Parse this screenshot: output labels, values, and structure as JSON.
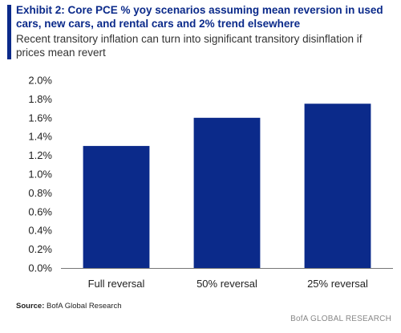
{
  "header": {
    "title": "Exhibit 2: Core PCE % yoy scenarios assuming mean reversion in used cars, new cars, and rental cars and 2% trend elsewhere",
    "subtitle": "Recent transitory inflation can turn into significant transitory disinflation if prices mean revert"
  },
  "colors": {
    "bar": "#0b2a8a",
    "accent": "#0b2a8a"
  },
  "chart_data": {
    "type": "bar",
    "title": "Exhibit 2: Core PCE % yoy scenarios assuming mean reversion in used cars, new cars, and rental cars and 2% trend elsewhere",
    "subtitle": "Recent transitory inflation can turn into significant transitory disinflation if prices mean revert",
    "categories": [
      "Full reversal",
      "50% reversal",
      "25% reversal"
    ],
    "values": [
      1.3,
      1.6,
      1.75
    ],
    "xlabel": "",
    "ylabel": "",
    "ylim": [
      0,
      2.0
    ],
    "yticks": [
      "0.0%",
      "0.2%",
      "0.4%",
      "0.6%",
      "0.8%",
      "1.0%",
      "1.2%",
      "1.4%",
      "1.6%",
      "1.8%",
      "2.0%"
    ],
    "grid": false,
    "legend": "none"
  },
  "footer": {
    "source_label": "Source:",
    "source_text": " BofA Global Research",
    "brand": "BofA GLOBAL RESEARCH"
  }
}
